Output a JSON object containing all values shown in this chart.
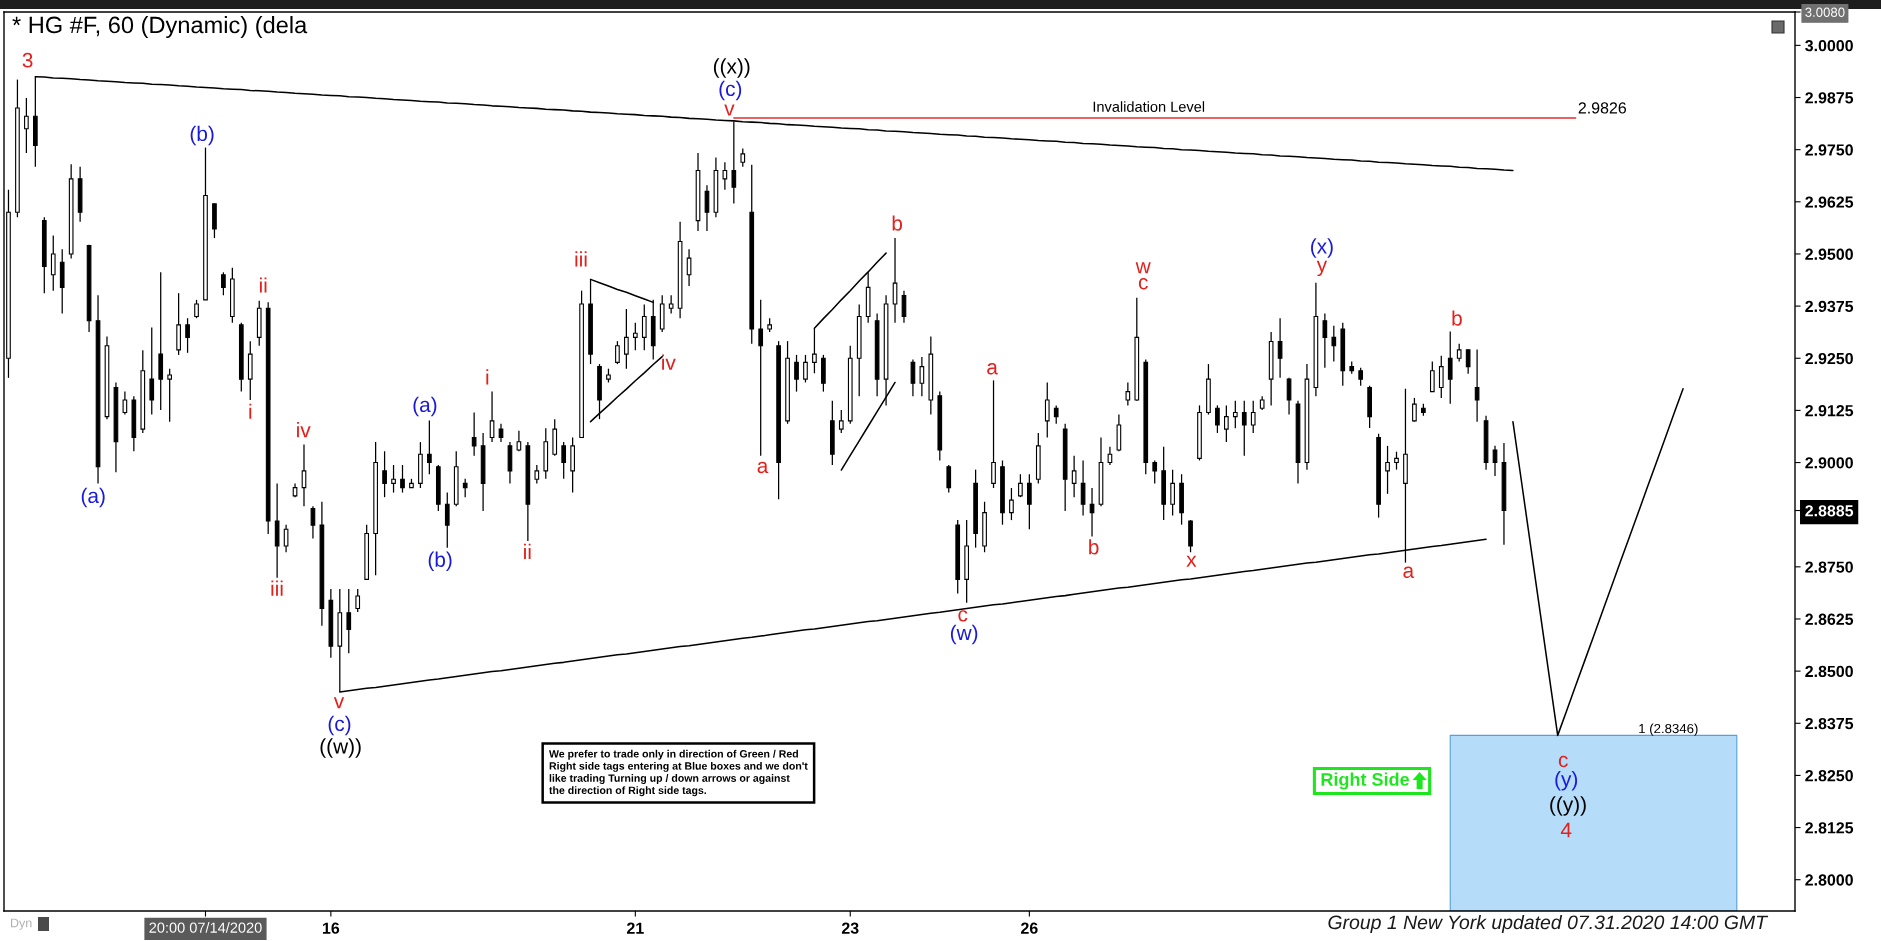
{
  "chart_data": {
    "type": "candlestick",
    "title": "* HG #F, 60 (Dynamic) (dela",
    "color": "#000000",
    "categories": [
      null,
      null,
      null,
      null,
      null,
      null,
      null,
      null,
      null,
      null,
      null,
      null,
      null,
      null,
      null,
      null,
      null,
      null,
      null,
      null,
      null,
      null,
      "20:00 07/14/2020",
      null,
      null,
      null,
      null,
      null,
      null,
      null,
      null,
      null,
      null,
      null,
      null,
      null,
      "16",
      null,
      null,
      null,
      null,
      null,
      null,
      null,
      null,
      null,
      null,
      null,
      null,
      null,
      null,
      null,
      null,
      null,
      null,
      null,
      null,
      null,
      null,
      null,
      null,
      null,
      null,
      null,
      null,
      null,
      null,
      null,
      null,
      null,
      "21",
      null,
      null,
      null,
      null,
      null,
      null,
      null,
      null,
      null,
      null,
      null,
      null,
      null,
      null,
      null,
      null,
      null,
      null,
      null,
      null,
      null,
      null,
      null,
      "23",
      null,
      null,
      null,
      null,
      null,
      null,
      null,
      null,
      null,
      null,
      null,
      null,
      null,
      null,
      null,
      null,
      null,
      null,
      null,
      "26",
      null,
      null,
      null,
      null,
      null,
      null,
      null,
      null,
      null,
      null,
      null,
      null,
      null,
      null,
      null,
      null,
      null,
      null,
      null,
      null,
      null,
      null,
      null,
      null,
      null,
      null,
      null,
      null,
      null,
      null,
      null,
      null,
      null,
      null,
      null,
      null,
      null,
      null,
      null,
      null,
      null,
      null,
      null,
      null,
      null,
      null,
      null,
      null,
      null,
      null,
      null,
      null,
      null,
      null,
      null,
      null,
      null,
      null,
      null,
      null,
      null,
      null,
      null,
      null,
      null,
      null,
      null,
      null,
      null,
      null,
      null,
      null,
      null,
      null,
      null,
      null,
      null,
      null,
      null,
      null,
      null,
      null,
      null,
      null,
      null
    ],
    "ohlc": [
      [
        2.925,
        2.9654,
        2.9203,
        2.96
      ],
      [
        2.96,
        2.9918,
        2.9588,
        2.985
      ],
      [
        2.98,
        2.9874,
        2.9742,
        2.983
      ],
      [
        2.983,
        2.9925,
        2.9709,
        2.976
      ],
      [
        2.958,
        2.9588,
        2.9406,
        2.947
      ],
      [
        2.945,
        2.9544,
        2.9412,
        2.95
      ],
      [
        2.948,
        2.9511,
        2.9357,
        2.942
      ],
      [
        2.95,
        2.9715,
        2.9489,
        2.968
      ],
      [
        2.968,
        2.9709,
        2.9577,
        2.96
      ],
      [
        2.952,
        2.9522,
        2.9313,
        2.934
      ],
      [
        2.934,
        2.9401,
        2.895,
        2.899
      ],
      [
        2.911,
        2.9302,
        2.9104,
        2.928
      ],
      [
        2.918,
        2.9192,
        2.8977,
        2.905
      ],
      [
        2.912,
        2.917,
        2.9115,
        2.915
      ],
      [
        2.915,
        2.9159,
        2.9027,
        2.906
      ],
      [
        2.908,
        2.9269,
        2.9071,
        2.922
      ],
      [
        2.92,
        2.9324,
        2.9115,
        2.915
      ],
      [
        2.926,
        2.9456,
        2.9126,
        2.92
      ],
      [
        2.92,
        2.9225,
        2.9098,
        2.921
      ],
      [
        2.927,
        2.9406,
        2.9258,
        2.933
      ],
      [
        2.933,
        2.9346,
        2.9263,
        2.93
      ],
      [
        2.935,
        2.939,
        2.9346,
        2.938
      ],
      [
        2.939,
        2.9755,
        2.939,
        2.964
      ],
      [
        2.962,
        2.9621,
        2.9538,
        2.956
      ],
      [
        2.945,
        2.9456,
        2.9401,
        2.942
      ],
      [
        2.935,
        2.9467,
        2.9335,
        2.944
      ],
      [
        2.933,
        2.9335,
        2.917,
        2.92
      ],
      [
        2.92,
        2.9291,
        2.915,
        2.926
      ],
      [
        2.93,
        2.9388,
        2.928,
        2.937
      ],
      [
        2.937,
        2.9384,
        2.8829,
        2.886
      ],
      [
        2.886,
        2.895,
        2.8724,
        2.88
      ],
      [
        2.88,
        2.8851,
        2.8785,
        2.884
      ],
      [
        2.892,
        2.895,
        2.8917,
        2.894
      ],
      [
        2.894,
        2.9043,
        2.8895,
        2.898
      ],
      [
        2.889,
        2.8895,
        2.8818,
        2.885
      ],
      [
        2.885,
        2.8906,
        2.8609,
        2.865
      ],
      [
        2.867,
        2.8697,
        2.8532,
        2.856
      ],
      [
        2.856,
        2.8697,
        2.845,
        2.864
      ],
      [
        2.864,
        2.8697,
        2.8543,
        2.86
      ],
      [
        2.865,
        2.8697,
        2.8642,
        2.868
      ],
      [
        2.872,
        2.8851,
        2.8719,
        2.883
      ],
      [
        2.883,
        2.9049,
        2.873,
        2.9
      ],
      [
        2.898,
        2.9027,
        2.8917,
        2.895
      ],
      [
        2.895,
        2.8994,
        2.8928,
        2.896
      ],
      [
        2.896,
        2.8994,
        2.8928,
        2.894
      ],
      [
        2.894,
        2.8961,
        2.8939,
        2.895
      ],
      [
        2.895,
        2.9049,
        2.8939,
        2.902
      ],
      [
        2.902,
        2.9101,
        2.8972,
        2.9
      ],
      [
        2.899,
        2.8994,
        2.8884,
        2.89
      ],
      [
        2.89,
        2.8928,
        2.8796,
        2.885
      ],
      [
        2.89,
        2.9027,
        2.8895,
        2.899
      ],
      [
        2.895,
        2.8961,
        2.8917,
        2.894
      ],
      [
        2.906,
        2.912,
        2.9016,
        2.904
      ],
      [
        2.904,
        2.9071,
        2.8884,
        2.895
      ],
      [
        2.906,
        2.917,
        2.9049,
        2.91
      ],
      [
        2.908,
        2.9093,
        2.9049,
        2.906
      ],
      [
        2.904,
        2.9049,
        2.895,
        2.898
      ],
      [
        2.903,
        2.9076,
        2.9027,
        2.905
      ],
      [
        2.904,
        2.9049,
        2.8812,
        2.89
      ],
      [
        2.896,
        2.8994,
        2.895,
        2.898
      ],
      [
        2.898,
        2.9082,
        2.8961,
        2.905
      ],
      [
        2.902,
        2.9104,
        2.9016,
        2.908
      ],
      [
        2.904,
        2.9049,
        2.8961,
        2.9
      ],
      [
        2.898,
        2.906,
        2.8928,
        2.904
      ],
      [
        2.906,
        2.9412,
        2.906,
        2.938
      ],
      [
        2.938,
        2.9439,
        2.9236,
        2.926
      ],
      [
        2.923,
        2.9236,
        2.9104,
        2.915
      ],
      [
        2.92,
        2.9225,
        2.9192,
        2.921
      ],
      [
        2.924,
        2.9291,
        2.9236,
        2.928
      ],
      [
        2.926,
        2.9368,
        2.9225,
        2.93
      ],
      [
        2.93,
        2.9335,
        2.9269,
        2.931
      ],
      [
        2.93,
        2.9379,
        2.9269,
        2.935
      ],
      [
        2.935,
        2.939,
        2.9247,
        2.928
      ],
      [
        2.932,
        2.9401,
        2.9313,
        2.938
      ],
      [
        2.937,
        2.9401,
        2.9357,
        2.938
      ],
      [
        2.937,
        2.9577,
        2.9346,
        2.953
      ],
      [
        2.945,
        2.9511,
        2.9423,
        2.949
      ],
      [
        2.958,
        2.9742,
        2.9555,
        2.97
      ],
      [
        2.965,
        2.9665,
        2.9555,
        2.96
      ],
      [
        2.96,
        2.9731,
        2.9588,
        2.97
      ],
      [
        2.968,
        2.972,
        2.9654,
        2.97
      ],
      [
        2.97,
        2.9817,
        2.9621,
        2.966
      ],
      [
        2.972,
        2.9753,
        2.9709,
        2.974
      ],
      [
        2.96,
        2.9714,
        2.9285,
        2.932
      ],
      [
        2.932,
        2.939,
        2.9016,
        2.928
      ],
      [
        2.932,
        2.9346,
        2.9313,
        2.933
      ],
      [
        2.928,
        2.9291,
        2.8912,
        2.9
      ],
      [
        2.91,
        2.9291,
        2.9093,
        2.925
      ],
      [
        2.924,
        2.9258,
        2.917,
        2.92
      ],
      [
        2.92,
        2.9258,
        2.9192,
        2.924
      ],
      [
        2.924,
        2.9322,
        2.9214,
        2.926
      ],
      [
        2.925,
        2.9258,
        2.917,
        2.919
      ],
      [
        2.91,
        2.9148,
        2.8994,
        2.902
      ],
      [
        2.908,
        2.9126,
        2.9071,
        2.91
      ],
      [
        2.91,
        2.928,
        2.9093,
        2.925
      ],
      [
        2.925,
        2.9379,
        2.9159,
        2.935
      ],
      [
        2.935,
        2.9456,
        2.9335,
        2.942
      ],
      [
        2.934,
        2.9357,
        2.9159,
        2.92
      ],
      [
        2.92,
        2.9401,
        2.9137,
        2.938
      ],
      [
        2.938,
        2.9538,
        2.9335,
        2.943
      ],
      [
        2.94,
        2.9412,
        2.9335,
        2.935
      ],
      [
        2.924,
        2.9247,
        2.9159,
        2.919
      ],
      [
        2.919,
        2.9253,
        2.9159,
        2.923
      ],
      [
        2.915,
        2.9302,
        2.9115,
        2.926
      ],
      [
        2.916,
        2.917,
        2.9005,
        2.903
      ],
      [
        2.899,
        2.8994,
        2.8928,
        2.894
      ],
      [
        2.885,
        2.8862,
        2.8686,
        2.872
      ],
      [
        2.872,
        2.8862,
        2.8664,
        2.88
      ],
      [
        2.895,
        2.8983,
        2.8796,
        2.883
      ],
      [
        2.88,
        2.8906,
        2.8785,
        2.888
      ],
      [
        2.895,
        2.9197,
        2.8939,
        2.9
      ],
      [
        2.899,
        2.9005,
        2.8851,
        2.888
      ],
      [
        2.888,
        2.8939,
        2.8862,
        2.891
      ],
      [
        2.892,
        2.8972,
        2.8917,
        2.895
      ],
      [
        2.895,
        2.8972,
        2.884,
        2.89
      ],
      [
        2.896,
        2.9071,
        2.895,
        2.904
      ],
      [
        2.91,
        2.9192,
        2.906,
        2.915
      ],
      [
        2.913,
        2.9137,
        2.9093,
        2.911
      ],
      [
        2.908,
        2.9093,
        2.8884,
        2.896
      ],
      [
        2.895,
        2.9016,
        2.8917,
        2.898
      ],
      [
        2.895,
        2.9005,
        2.8873,
        2.89
      ],
      [
        2.89,
        2.8939,
        2.8823,
        2.888
      ],
      [
        2.89,
        2.906,
        2.8895,
        2.9
      ],
      [
        2.9,
        2.9038,
        2.8994,
        2.902
      ],
      [
        2.903,
        2.9115,
        2.9027,
        2.909
      ],
      [
        2.915,
        2.9192,
        2.9137,
        2.917
      ],
      [
        2.915,
        2.9395,
        2.9148,
        2.93
      ],
      [
        2.924,
        2.9247,
        2.8972,
        2.9
      ],
      [
        2.9,
        2.9005,
        2.895,
        2.898
      ],
      [
        2.898,
        2.9038,
        2.8862,
        2.89
      ],
      [
        2.89,
        2.8983,
        2.8873,
        2.895
      ],
      [
        2.895,
        2.8972,
        2.8851,
        2.888
      ],
      [
        2.886,
        2.8862,
        2.8785,
        2.88
      ],
      [
        2.901,
        2.9137,
        2.9005,
        2.912
      ],
      [
        2.912,
        2.9236,
        2.9115,
        2.92
      ],
      [
        2.913,
        2.9137,
        2.9071,
        2.909
      ],
      [
        2.908,
        2.9137,
        2.9049,
        2.911
      ],
      [
        2.911,
        2.9148,
        2.9082,
        2.912
      ],
      [
        2.912,
        2.9148,
        2.9016,
        2.909
      ],
      [
        2.909,
        2.9148,
        2.9071,
        2.912
      ],
      [
        2.913,
        2.9159,
        2.9126,
        2.915
      ],
      [
        2.92,
        2.9313,
        2.9137,
        2.929
      ],
      [
        2.929,
        2.9346,
        2.9203,
        2.925
      ],
      [
        2.92,
        2.9203,
        2.9115,
        2.915
      ],
      [
        2.914,
        2.9148,
        2.895,
        2.9
      ],
      [
        2.9,
        2.9236,
        2.8983,
        2.92
      ],
      [
        2.918,
        2.9431,
        2.9159,
        2.935
      ],
      [
        2.934,
        2.9357,
        2.9227,
        2.93
      ],
      [
        2.93,
        2.9328,
        2.9242,
        2.928
      ],
      [
        2.932,
        2.9335,
        2.9184,
        2.922
      ],
      [
        2.923,
        2.9242,
        2.9213,
        2.922
      ],
      [
        2.922,
        2.9227,
        2.9184,
        2.92
      ],
      [
        2.918,
        2.9184,
        2.9083,
        2.911
      ],
      [
        2.906,
        2.9069,
        2.8868,
        2.89
      ],
      [
        2.898,
        2.904,
        2.8925,
        2.9
      ],
      [
        2.9,
        2.9026,
        2.8983,
        2.901
      ],
      [
        2.895,
        2.9177,
        2.876,
        2.902
      ],
      [
        2.91,
        2.9155,
        2.9098,
        2.914
      ],
      [
        2.913,
        2.9141,
        2.9112,
        2.912
      ],
      [
        2.917,
        2.9242,
        2.917,
        2.922
      ],
      [
        2.918,
        2.9256,
        2.9155,
        2.923
      ],
      [
        2.925,
        2.9314,
        2.9141,
        2.92
      ],
      [
        2.925,
        2.9285,
        2.9242,
        2.927
      ],
      [
        2.927,
        2.9271,
        2.9213,
        2.923
      ],
      [
        2.918,
        2.9271,
        2.9098,
        2.915
      ],
      [
        2.91,
        2.9112,
        2.8983,
        2.9
      ],
      [
        2.903,
        2.904,
        2.8968,
        2.9
      ],
      [
        2.9,
        2.9047,
        2.8803,
        2.8885
      ],
      null,
      null,
      null,
      null,
      null,
      null,
      null,
      null,
      null,
      null,
      null,
      null,
      null,
      null,
      null,
      null,
      null,
      null,
      null,
      null,
      null,
      null,
      null,
      null,
      null,
      null,
      null,
      null,
      null,
      null,
      null,
      null
    ],
    "ylim": [
      2.7925,
      3.008
    ],
    "yticks": [
      {
        "value": 2.8,
        "label": "2.8000"
      },
      2.8125,
      {
        "value": 2.825,
        "label": "2.8250"
      },
      2.8375,
      {
        "value": 2.85,
        "label": "2.8500"
      },
      2.8625,
      {
        "value": 2.875,
        "label": "2.8750"
      },
      2.8885,
      {
        "value": 2.9,
        "label": "2.9000"
      },
      2.9125,
      {
        "value": 2.925,
        "label": "2.9250"
      },
      2.9375,
      {
        "value": 2.95,
        "label": "2.9500"
      },
      2.9625,
      {
        "value": 2.975,
        "label": "2.9750"
      },
      2.9875,
      {
        "value": 3.0,
        "label": "3.0000"
      },
      {
        "value": 3.008,
        "label": "3.0080"
      }
    ],
    "series": [
      {
        "type": "area",
        "color": "#b5dcf9",
        "values": [
          null,
          null,
          null,
          null,
          null,
          null,
          null,
          null,
          null,
          null,
          null,
          null,
          null,
          null,
          null,
          null,
          null,
          null,
          null,
          null,
          null,
          null,
          null,
          null,
          null,
          null,
          null,
          null,
          null,
          null,
          null,
          null,
          null,
          null,
          null,
          null,
          null,
          null,
          null,
          null,
          null,
          null,
          null,
          null,
          null,
          null,
          null,
          null,
          null,
          null,
          null,
          null,
          null,
          null,
          null,
          null,
          null,
          null,
          null,
          null,
          null,
          null,
          null,
          null,
          null,
          null,
          null,
          null,
          null,
          null,
          null,
          null,
          null,
          null,
          null,
          null,
          null,
          null,
          null,
          null,
          null,
          null,
          null,
          null,
          null,
          null,
          null,
          null,
          null,
          null,
          null,
          null,
          null,
          null,
          null,
          null,
          null,
          null,
          null,
          null,
          null,
          null,
          null,
          null,
          null,
          null,
          null,
          null,
          null,
          null,
          null,
          null,
          null,
          null,
          null,
          null,
          null,
          null,
          null,
          null,
          null,
          null,
          null,
          null,
          null,
          null,
          null,
          null,
          null,
          null,
          null,
          null,
          null,
          null,
          null,
          null,
          null,
          null,
          null,
          null,
          null,
          null,
          null,
          null,
          null,
          null,
          null,
          null,
          null,
          null,
          null,
          null,
          null,
          null,
          null,
          null,
          null,
          null,
          null,
          null,
          null,
          2.8346,
          2.8346,
          2.8346,
          2.8346,
          2.8346,
          2.8346,
          2.8346,
          2.8346,
          2.8346,
          2.8346,
          2.8346,
          2.8346,
          2.8346,
          2.8346,
          2.8346,
          2.8346,
          2.8346,
          2.8346,
          2.8346,
          2.8346,
          2.8346,
          2.8346,
          2.8346,
          2.8346,
          2.8346,
          2.8346,
          2.8346,
          2.8346,
          2.8346,
          2.8346,
          2.8346,
          2.8346,
          2.8346,
          null,
          null,
          null,
          null,
          null,
          null
        ]
      },
      {
        "type": "line",
        "color": "#000000",
        "values": [
          null,
          null,
          null,
          2.9925,
          2.9924,
          2.9922,
          2.9921,
          2.992,
          2.9918,
          2.9917,
          2.9915,
          2.9914,
          2.9913,
          2.9911,
          2.991,
          2.9909,
          2.9907,
          2.9906,
          2.9905,
          2.9903,
          2.9902,
          2.99,
          2.9899,
          2.9898,
          2.9896,
          2.9895,
          2.9894,
          2.9892,
          2.9891,
          2.989,
          2.9888,
          2.9887,
          2.9885,
          2.9884,
          2.9883,
          2.9881,
          2.988,
          2.9879,
          2.9877,
          2.9876,
          2.9875,
          2.9873,
          2.9872,
          2.987,
          2.9869,
          2.9868,
          2.9866,
          2.9865,
          2.9864,
          2.9862,
          2.9861,
          2.986,
          2.9858,
          2.9857,
          2.9855,
          2.9854,
          2.9853,
          2.9851,
          2.985,
          2.9849,
          2.9847,
          2.9846,
          2.9845,
          2.9843,
          2.9842,
          2.984,
          2.9839,
          2.9838,
          2.9836,
          2.9835,
          2.9834,
          2.9832,
          2.9831,
          2.983,
          2.9828,
          2.9827,
          2.9825,
          2.9824,
          2.9823,
          2.9821,
          2.982,
          2.9819,
          2.9817,
          2.9816,
          2.9815,
          2.9813,
          2.9812,
          2.981,
          2.9809,
          2.9808,
          2.9806,
          2.9805,
          2.9804,
          2.9802,
          2.9801,
          2.98,
          2.9798,
          2.9797,
          2.9795,
          2.9794,
          2.9793,
          2.9791,
          2.979,
          2.9789,
          2.9787,
          2.9786,
          2.9785,
          2.9783,
          2.9782,
          2.978,
          2.9779,
          2.9778,
          2.9776,
          2.9775,
          2.9774,
          2.9772,
          2.9771,
          2.977,
          2.9768,
          2.9767,
          2.9765,
          2.9764,
          2.9763,
          2.9761,
          2.976,
          2.9759,
          2.9757,
          2.9756,
          2.9755,
          2.9753,
          2.9752,
          2.975,
          2.9749,
          2.9748,
          2.9746,
          2.9745,
          2.9744,
          2.9742,
          2.9741,
          2.974,
          2.9738,
          2.9737,
          2.9735,
          2.9734,
          2.9733,
          2.9731,
          2.973,
          2.9729,
          2.9727,
          2.9726,
          2.9725,
          2.9723,
          2.9722,
          2.972,
          2.9719,
          2.9718,
          2.9716,
          2.9715,
          2.9714,
          2.9712,
          2.9711,
          2.971,
          2.9708,
          2.9707,
          2.9705,
          2.9704,
          2.9703,
          2.9701,
          2.97,
          null,
          null,
          null,
          null,
          null,
          null,
          null,
          null,
          null,
          null,
          null,
          null,
          null,
          null,
          null,
          null,
          null,
          null,
          null,
          null,
          null,
          null,
          null,
          null,
          null,
          null,
          null,
          null,
          null,
          null,
          null
        ]
      },
      {
        "type": "line",
        "color": "#000000",
        "values": [
          null,
          null,
          null,
          null,
          null,
          null,
          null,
          null,
          null,
          null,
          null,
          null,
          null,
          null,
          null,
          null,
          null,
          null,
          null,
          null,
          null,
          null,
          null,
          null,
          null,
          null,
          null,
          null,
          null,
          null,
          null,
          null,
          null,
          null,
          null,
          null,
          null,
          2.845,
          2.8453,
          2.8456,
          2.8459,
          2.8461,
          2.8464,
          2.8467,
          2.847,
          2.8473,
          2.8476,
          2.8479,
          2.8481,
          2.8484,
          2.8487,
          2.849,
          2.8493,
          2.8496,
          2.8499,
          2.8501,
          2.8504,
          2.8507,
          2.851,
          2.8513,
          2.8516,
          2.8519,
          2.8521,
          2.8524,
          2.8527,
          2.853,
          2.8533,
          2.8536,
          2.8539,
          2.8541,
          2.8544,
          2.8547,
          2.855,
          2.8553,
          2.8556,
          2.8559,
          2.8561,
          2.8564,
          2.8567,
          2.857,
          2.8573,
          2.8576,
          2.8579,
          2.8581,
          2.8584,
          2.8587,
          2.859,
          2.8593,
          2.8596,
          2.8599,
          2.8601,
          2.8604,
          2.8607,
          2.861,
          2.8613,
          2.8616,
          2.8619,
          2.8621,
          2.8624,
          2.8627,
          2.863,
          2.8633,
          2.8636,
          2.8639,
          2.8641,
          2.8644,
          2.8647,
          2.865,
          2.8653,
          2.8656,
          2.8659,
          2.8661,
          2.8664,
          2.8667,
          2.867,
          2.8673,
          2.8676,
          2.8679,
          2.8681,
          2.8684,
          2.8687,
          2.869,
          2.8693,
          2.8696,
          2.8699,
          2.8701,
          2.8704,
          2.8707,
          2.871,
          2.8713,
          2.8716,
          2.8719,
          2.8721,
          2.8724,
          2.8727,
          2.873,
          2.8733,
          2.8736,
          2.8739,
          2.8741,
          2.8744,
          2.8747,
          2.875,
          2.8753,
          2.8756,
          2.8759,
          2.8761,
          2.8764,
          2.8767,
          2.877,
          2.8773,
          2.8776,
          2.8779,
          2.8781,
          2.8784,
          2.8787,
          2.879,
          2.8793,
          2.8796,
          2.8799,
          2.8801,
          2.8804,
          2.8807,
          2.881,
          2.8813,
          2.8816,
          null,
          null,
          null,
          null,
          null,
          null,
          null,
          null,
          null,
          null,
          null,
          null,
          null,
          null,
          null,
          null,
          null,
          null,
          null,
          null,
          null,
          null,
          null,
          null,
          null,
          null,
          null,
          null,
          null,
          null,
          null,
          null,
          null,
          null
        ]
      },
      {
        "type": "line",
        "color": "#000000",
        "values": [
          null,
          null,
          null,
          null,
          null,
          null,
          null,
          null,
          null,
          null,
          null,
          null,
          null,
          null,
          null,
          null,
          null,
          null,
          null,
          null,
          null,
          null,
          null,
          null,
          null,
          null,
          null,
          null,
          null,
          null,
          null,
          null,
          null,
          null,
          null,
          null,
          null,
          null,
          null,
          null,
          null,
          null,
          null,
          null,
          null,
          null,
          null,
          null,
          null,
          null,
          null,
          null,
          null,
          null,
          null,
          null,
          null,
          null,
          null,
          null,
          null,
          null,
          null,
          null,
          null,
          2.9439,
          2.9431,
          2.9423,
          2.9415,
          2.9408,
          2.94,
          2.9392,
          2.9384,
          null,
          null,
          null,
          null,
          null,
          null,
          null,
          null,
          null,
          null,
          null,
          null,
          null,
          null,
          null,
          null,
          null,
          2.9322,
          2.9345,
          2.9367,
          2.939,
          2.9412,
          2.9435,
          2.9457,
          2.948,
          2.9502,
          null,
          null,
          null,
          null,
          null,
          null,
          null,
          null,
          null,
          null,
          null,
          null,
          null,
          null,
          null,
          null,
          null,
          null,
          null,
          null,
          null,
          null,
          null,
          null,
          null,
          null,
          null,
          null,
          null,
          null,
          null,
          null,
          null,
          null,
          null,
          null,
          null,
          null,
          null,
          null,
          null,
          null,
          null,
          null,
          null,
          null,
          null,
          null,
          null,
          null,
          null,
          null,
          null,
          null,
          null,
          null,
          null,
          null,
          null,
          null,
          null,
          null,
          null,
          null,
          null,
          null,
          null,
          null,
          null,
          null,
          null,
          null,
          null,
          null,
          null,
          null,
          null,
          null,
          null,
          null,
          null,
          null,
          null,
          null,
          null,
          null,
          null,
          null,
          null,
          null,
          null,
          null,
          null,
          null,
          null,
          null,
          null,
          null,
          null,
          null,
          null
        ]
      },
      {
        "type": "line",
        "color": "#000000",
        "values": [
          null,
          null,
          null,
          null,
          null,
          null,
          null,
          null,
          null,
          null,
          null,
          null,
          null,
          null,
          null,
          null,
          null,
          null,
          null,
          null,
          null,
          null,
          null,
          null,
          null,
          null,
          null,
          null,
          null,
          null,
          null,
          null,
          null,
          null,
          null,
          null,
          null,
          null,
          null,
          null,
          null,
          null,
          null,
          null,
          null,
          null,
          null,
          null,
          null,
          null,
          null,
          null,
          null,
          null,
          null,
          null,
          null,
          null,
          null,
          null,
          null,
          null,
          null,
          null,
          null,
          2.9098,
          2.9118,
          2.9137,
          2.9157,
          2.9176,
          2.9196,
          2.9215,
          2.9235,
          2.9254,
          null,
          null,
          null,
          null,
          null,
          null,
          null,
          null,
          null,
          null,
          null,
          null,
          null,
          null,
          null,
          null,
          null,
          null,
          null,
          2.8982,
          2.9017,
          2.9052,
          2.9087,
          2.9122,
          2.9157,
          2.9192,
          null,
          null,
          null,
          null,
          null,
          null,
          null,
          null,
          null,
          null,
          null,
          null,
          null,
          null,
          null,
          null,
          null,
          null,
          null,
          null,
          null,
          null,
          null,
          null,
          null,
          null,
          null,
          null,
          null,
          null,
          null,
          null,
          null,
          null,
          null,
          null,
          null,
          null,
          null,
          null,
          null,
          null,
          null,
          null,
          null,
          null,
          null,
          null,
          null,
          null,
          null,
          null,
          null,
          null,
          null,
          null,
          null,
          null,
          null,
          null,
          null,
          null,
          null,
          null,
          null,
          null,
          null,
          null,
          2.9098,
          2.8948,
          2.8797,
          2.8647,
          2.8496,
          2.8346,
          2.8405,
          2.8465,
          2.8524,
          2.8583,
          2.8643,
          2.8702,
          2.8762,
          2.8821,
          2.888,
          2.894,
          2.8999,
          2.9058,
          2.9118,
          2.9177,
          null,
          null,
          null,
          null,
          null,
          null,
          null,
          null,
          null,
          null,
          null,
          null
        ]
      },
      {
        "type": "line",
        "color": "#e03030",
        "values": [
          null,
          null,
          null,
          null,
          null,
          null,
          null,
          null,
          null,
          null,
          null,
          null,
          null,
          null,
          null,
          null,
          null,
          null,
          null,
          null,
          null,
          null,
          null,
          null,
          null,
          null,
          null,
          null,
          null,
          null,
          null,
          null,
          null,
          null,
          null,
          null,
          null,
          null,
          null,
          null,
          null,
          null,
          null,
          null,
          null,
          null,
          null,
          null,
          null,
          null,
          null,
          null,
          null,
          null,
          null,
          null,
          null,
          null,
          null,
          null,
          null,
          null,
          null,
          null,
          null,
          null,
          null,
          null,
          null,
          null,
          null,
          null,
          null,
          null,
          null,
          null,
          null,
          null,
          null,
          null,
          null,
          2.9826,
          2.9826,
          2.9826,
          2.9826,
          2.9826,
          2.9826,
          2.9826,
          2.9826,
          2.9826,
          2.9826,
          2.9826,
          2.9826,
          2.9826,
          2.9826,
          2.9826,
          2.9826,
          2.9826,
          2.9826,
          2.9826,
          2.9826,
          2.9826,
          2.9826,
          2.9826,
          2.9826,
          2.9826,
          2.9826,
          2.9826,
          2.9826,
          2.9826,
          2.9826,
          2.9826,
          2.9826,
          2.9826,
          2.9826,
          2.9826,
          2.9826,
          2.9826,
          2.9826,
          2.9826,
          2.9826,
          2.9826,
          2.9826,
          2.9826,
          2.9826,
          2.9826,
          2.9826,
          2.9826,
          2.9826,
          2.9826,
          2.9826,
          2.9826,
          2.9826,
          2.9826,
          2.9826,
          2.9826,
          2.9826,
          2.9826,
          2.9826,
          2.9826,
          2.9826,
          2.9826,
          2.9826,
          2.9826,
          2.9826,
          2.9826,
          2.9826,
          2.9826,
          2.9826,
          2.9826,
          2.9826,
          2.9826,
          2.9826,
          2.9826,
          2.9826,
          2.9826,
          2.9826,
          2.9826,
          2.9826,
          2.9826,
          2.9826,
          2.9826,
          2.9826,
          2.9826,
          2.9826,
          2.9826,
          2.9826,
          2.9826,
          2.9826,
          2.9826,
          2.9826,
          2.9826,
          2.9826,
          2.9826,
          2.9826,
          2.9826,
          null,
          null,
          null,
          null,
          null,
          null,
          null,
          null,
          null,
          null,
          null,
          null,
          null,
          null,
          null,
          null,
          null,
          null,
          null,
          null,
          null,
          null,
          null,
          null
        ]
      }
    ],
    "annotations": [
      "3",
      "(b)",
      "(a)",
      "i",
      "ii",
      "iii",
      "iv",
      "v",
      "(c)",
      "((w))",
      "(a)",
      "(b)",
      "i",
      "ii",
      "iii",
      "iv",
      "((x))",
      "(c)",
      "v",
      "a",
      "b",
      "c",
      "(w)",
      "a",
      "b",
      "w",
      "c",
      "x",
      "(x)",
      "y",
      "a",
      "b",
      "c",
      "(y)",
      "((y))",
      "4",
      "Invalidation Level",
      "2.9826",
      "1 (2.8346)",
      "Right Side",
      "We prefer to trade only in direction of Green / Red\nRight side tags entering at Blue boxes and we don't\nlike trading Turning up / down arrows or against\nthe direction of Right side tags.",
      "Group 1 New York updated 07.31.2020 14:00 GMT",
      "Dyn"
    ]
  }
}
